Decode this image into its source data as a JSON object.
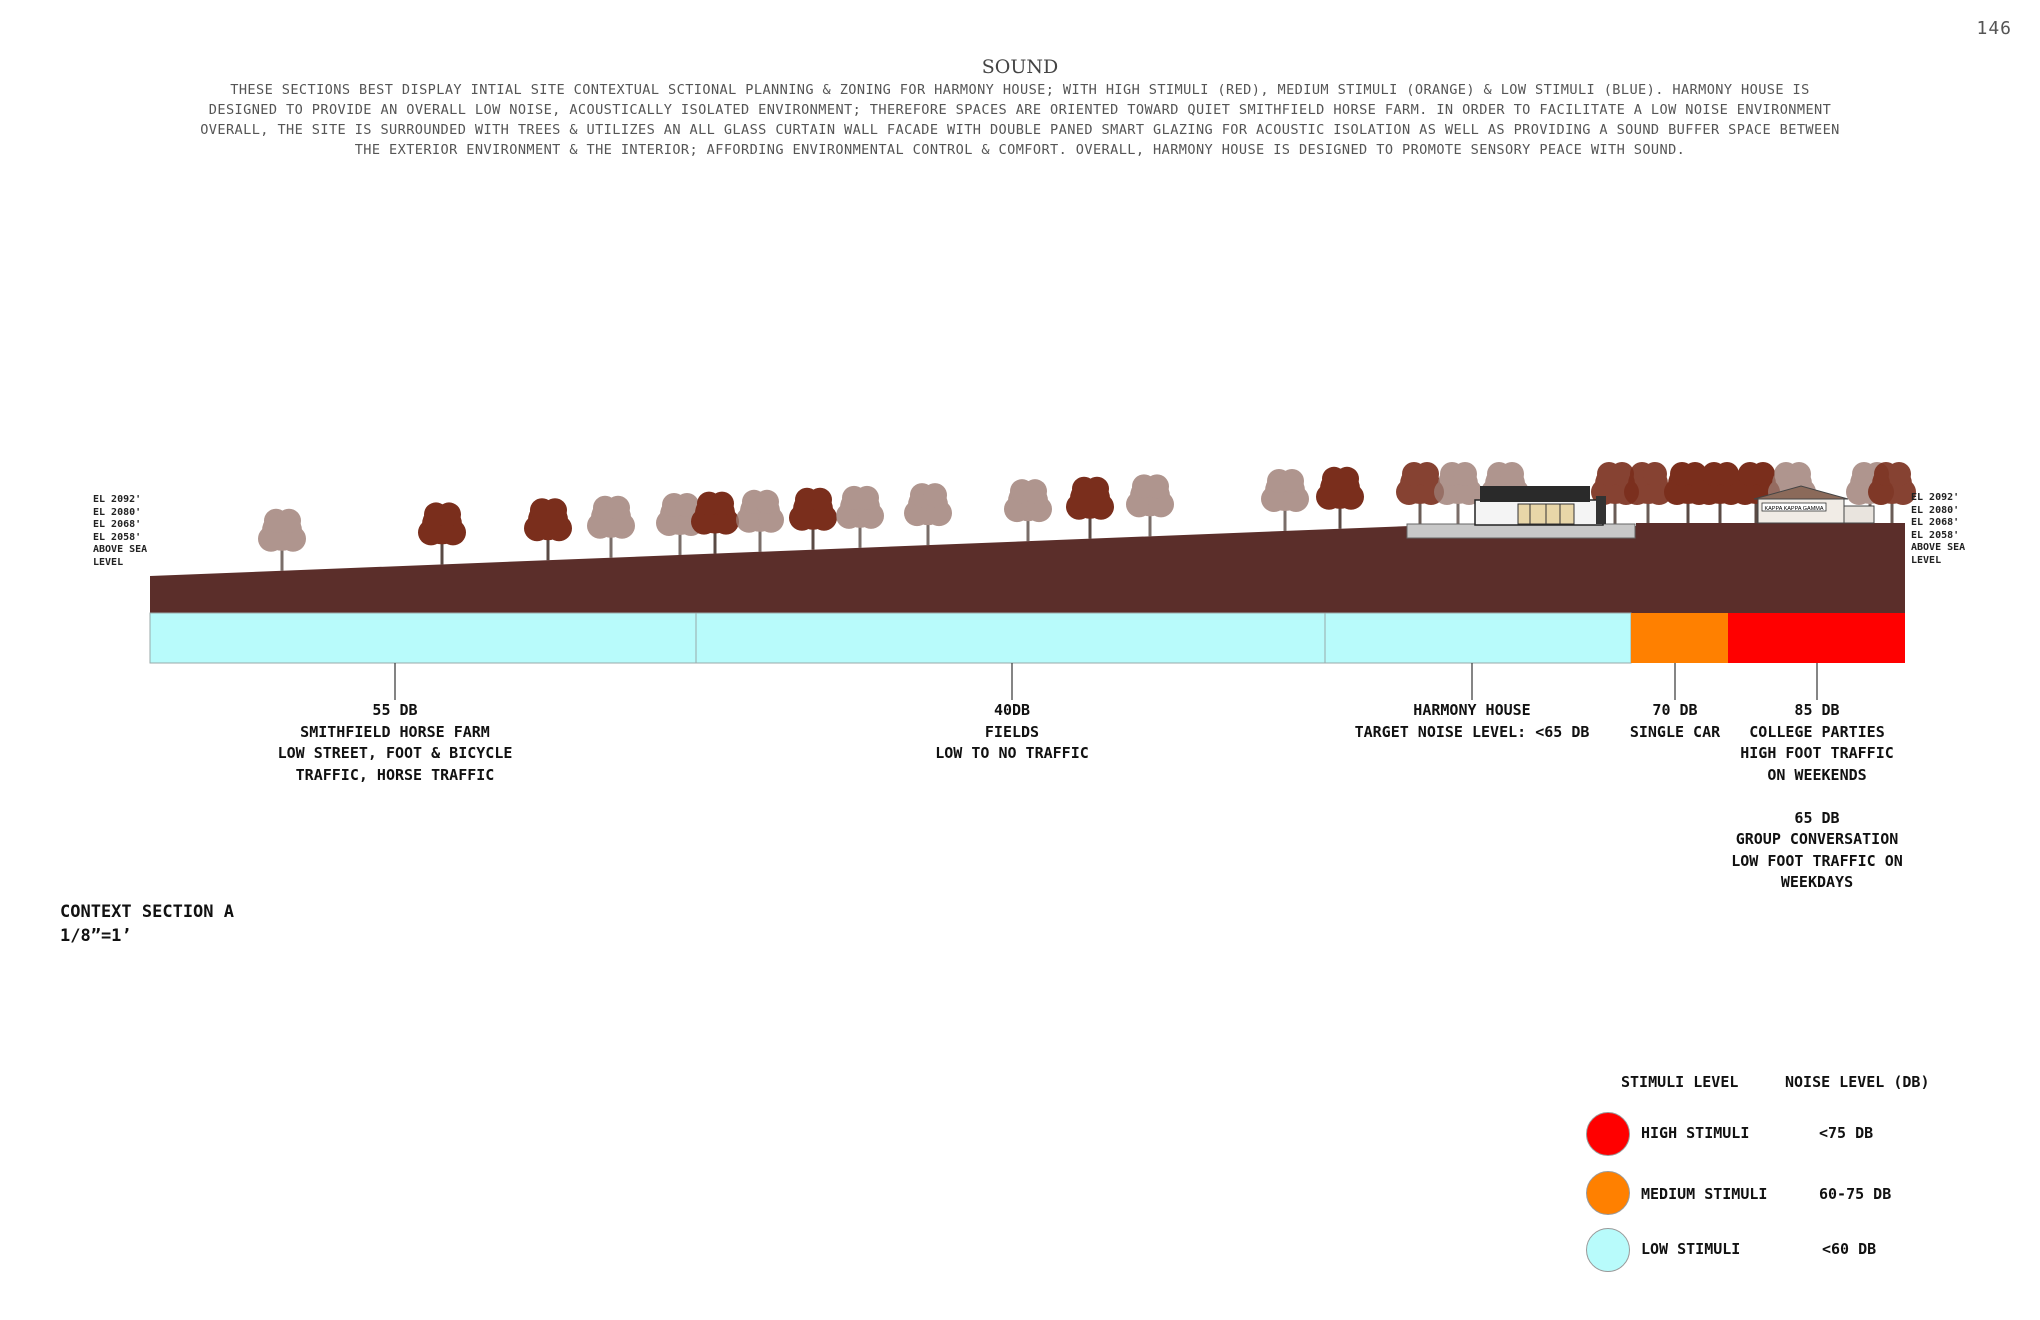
{
  "page_number": "146",
  "title": "SOUND",
  "intro": "THESE SECTIONS BEST DISPLAY INTIAL SITE CONTEXTUAL SCTIONAL PLANNING & ZONING FOR HARMONY HOUSE; WITH HIGH STIMULI (RED), MEDIUM STIMULI (ORANGE) & LOW STIMULI (BLUE). HARMONY HOUSE IS\nDESIGNED TO PROVIDE AN OVERALL LOW NOISE, ACOUSTICALLY ISOLATED ENVIRONMENT; THEREFORE SPACES ARE ORIENTED TOWARD QUIET SMITHFIELD HORSE FARM. IN ORDER TO FACILITATE A LOW NOISE ENVIRONMENT\nOVERALL, THE SITE IS SURROUNDED WITH TREES & UTILIZES AN ALL GLASS CURTAIN WALL FACADE WITH DOUBLE PANED SMART GLAZING FOR ACOUSTIC ISOLATION AS WELL AS PROVIDING A SOUND BUFFER SPACE BETWEEN\nTHE EXTERIOR ENVIRONMENT & THE INTERIOR; AFFORDING ENVIRONMENTAL CONTROL & COMFORT. OVERALL, HARMONY HOUSE IS DESIGNED TO PROMOTE SENSORY PEACE WITH SOUND.",
  "elevation_label": "EL 2092'\nEL 2080'\nEL 2068'\nEL 2058'\nABOVE SEA\nLEVEL",
  "colors": {
    "ground": "#5b2e2a",
    "low": "#b8fbfb",
    "medium": "#ff8000",
    "high": "#ff0000"
  },
  "zones": [
    {
      "id": "smithfield",
      "level": "low"
    },
    {
      "id": "fields",
      "level": "low"
    },
    {
      "id": "harmony",
      "level": "low"
    },
    {
      "id": "single-car",
      "level": "medium"
    },
    {
      "id": "college",
      "level": "high"
    }
  ],
  "callouts": {
    "smithfield": "55 DB\nSMITHFIELD HORSE FARM\nLOW STREET, FOOT & BICYCLE\nTRAFFIC, HORSE TRAFFIC",
    "fields": "40DB\nFIELDS\nLOW TO NO TRAFFIC",
    "harmony": "HARMONY HOUSE\nTARGET NOISE LEVEL: <65 DB",
    "single_car": "70 DB\nSINGLE CAR",
    "college": "85 DB\nCOLLEGE PARTIES\nHIGH FOOT TRAFFIC\nON WEEKENDS\n\n65 DB\nGROUP CONVERSATION\nLOW FOOT TRAFFIC ON\nWEEKDAYS"
  },
  "caption": {
    "name": "CONTEXT SECTION A",
    "scale": "1/8”=1’"
  },
  "legend": {
    "header_level": "STIMULI LEVEL",
    "header_noise": "NOISE LEVEL (DB)",
    "rows": [
      {
        "level": "HIGH STIMULI",
        "noise": "<75 DB",
        "color": "#ff0000"
      },
      {
        "level": "MEDIUM STIMULI",
        "noise": "60-75 DB",
        "color": "#ff8000"
      },
      {
        "level": "LOW STIMULI",
        "noise": "<60 DB",
        "color": "#b8fbfb"
      }
    ]
  },
  "signs": {
    "right_building": "KAPPA KAPPA GAMMA"
  }
}
